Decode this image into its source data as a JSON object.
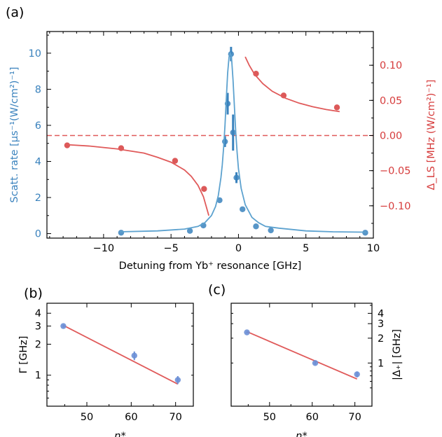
{
  "colors": {
    "blue": "#3a82bd",
    "blue_fit": "#5da2cf",
    "red": "#d63c3c",
    "red_fit": "#e05a5a",
    "slate": "#6b8fd6"
  },
  "chart_data": [
    {
      "panel_label": "(a)",
      "type": "scatter",
      "xlabel": "Detuning from Yb⁺ resonance [GHz]",
      "xlim": [
        -14.2,
        10
      ],
      "x_ticks": [
        "−10",
        "−5",
        "0",
        "5",
        "10"
      ],
      "left_axis": {
        "label": "Scatt. rate [μs⁻¹(W/cm²)⁻¹]",
        "ylim": [
          -0.25,
          11.2
        ],
        "ticks": [
          "0",
          "2",
          "4",
          "6",
          "8",
          "10"
        ],
        "color": "#3a82bd"
      },
      "right_axis": {
        "label": "Δ_LS [MHz (W/cm²)⁻¹]",
        "ylim": [
          -0.146,
          0.148
        ],
        "ticks": [
          "−0.10",
          "−0.05",
          "0.00",
          "0.05",
          "0.10"
        ],
        "color": "#d63c3c"
      },
      "series": [
        {
          "axis": "left",
          "kind": "points",
          "x": [
            -8.7,
            -3.6,
            -2.6,
            -1.4,
            -1.0,
            -0.8,
            -0.55,
            -0.4,
            -0.15,
            0.3,
            1.3,
            2.4,
            9.4
          ],
          "y": [
            0.05,
            0.15,
            0.45,
            1.85,
            5.1,
            7.2,
            9.95,
            5.6,
            3.1,
            1.35,
            0.4,
            0.18,
            0.05
          ],
          "yerr": [
            0.05,
            0.05,
            0.05,
            0.1,
            0.3,
            0.6,
            0.4,
            1.0,
            0.3,
            0.1,
            0.05,
            0.05,
            0.05
          ]
        },
        {
          "axis": "left",
          "kind": "fit",
          "x": [
            -8.8,
            -6,
            -4,
            -3,
            -2.5,
            -2,
            -1.7,
            -1.5,
            -1.3,
            -1.2,
            -1.1,
            -1.0,
            -0.9,
            -0.8,
            -0.7,
            -0.6,
            -0.55,
            -0.5,
            -0.4,
            -0.3,
            -0.2,
            -0.1,
            0,
            0.2,
            0.5,
            1,
            1.5,
            2,
            3,
            5,
            7,
            9.5
          ],
          "y": [
            0.1,
            0.15,
            0.25,
            0.4,
            0.6,
            1.0,
            1.5,
            2.1,
            3.1,
            3.8,
            4.8,
            6.0,
            7.5,
            8.9,
            9.8,
            10.0,
            9.9,
            9.6,
            8.5,
            7.0,
            5.6,
            4.5,
            3.6,
            2.5,
            1.6,
            0.9,
            0.6,
            0.4,
            0.3,
            0.15,
            0.1,
            0.08
          ]
        },
        {
          "axis": "right",
          "kind": "points",
          "x": [
            -12.7,
            -8.7,
            -4.7,
            -2.55,
            1.3,
            3.35,
            7.3
          ],
          "y": [
            -0.014,
            -0.018,
            -0.036,
            -0.076,
            0.088,
            0.057,
            0.04
          ]
        },
        {
          "axis": "right",
          "kind": "fit",
          "x": [
            -12.8,
            -11,
            -9,
            -7,
            -6,
            -5,
            -4,
            -3.5,
            -3,
            -2.6,
            -2.2
          ],
          "y": [
            -0.013,
            -0.015,
            -0.019,
            -0.025,
            -0.031,
            -0.038,
            -0.049,
            -0.058,
            -0.071,
            -0.087,
            -0.114
          ]
        },
        {
          "axis": "right",
          "kind": "fit",
          "x": [
            0.5,
            0.8,
            1.2,
            1.8,
            2.5,
            3.5,
            4.5,
            5.5,
            6.5,
            7.5
          ],
          "y": [
            0.112,
            0.1,
            0.087,
            0.074,
            0.063,
            0.053,
            0.046,
            0.041,
            0.037,
            0.034
          ]
        }
      ],
      "zero_line": {
        "axis": "right",
        "y": 0,
        "style": "dashed"
      }
    },
    {
      "panel_label": "(b)",
      "type": "scatter",
      "xlabel": "n*",
      "ylabel": "Γ [GHz]",
      "yscale": "log",
      "xlim": [
        41,
        74
      ],
      "ylim": [
        0.5,
        5.0
      ],
      "x_ticks": [
        "50",
        "60",
        "70"
      ],
      "y_ticks": [
        "1",
        "2",
        "3",
        "4"
      ],
      "points": {
        "x": [
          44.7,
          60.7,
          70.5
        ],
        "y": [
          3.0,
          1.55,
          0.9
        ],
        "yerr": [
          0.1,
          0.15,
          0.08
        ]
      },
      "fit": {
        "x": [
          44.7,
          70.5
        ],
        "y": [
          3.05,
          0.82
        ]
      }
    },
    {
      "panel_label": "(c)",
      "type": "scatter",
      "xlabel": "n*",
      "ylabel": "|Δ₊| [GHz]",
      "yscale": "log",
      "xlim": [
        41,
        74
      ],
      "ylim": [
        0.3,
        5.3
      ],
      "x_ticks": [
        "50",
        "60",
        "70"
      ],
      "y_ticks": [
        "1",
        "2",
        "3",
        "4"
      ],
      "points": {
        "x": [
          44.7,
          60.7,
          70.5
        ],
        "y": [
          2.35,
          1.0,
          0.73
        ],
        "yerr": [
          0.05,
          0.04,
          0.06
        ]
      },
      "fit": {
        "x": [
          44.7,
          70.5
        ],
        "y": [
          2.4,
          0.64
        ]
      }
    }
  ]
}
